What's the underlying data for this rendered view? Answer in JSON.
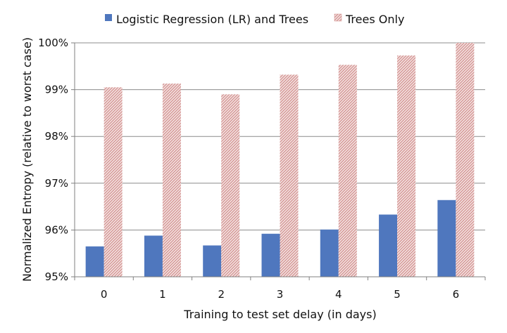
{
  "chart_data": {
    "type": "bar",
    "title": "",
    "xlabel": "Training to test set delay (in days)",
    "ylabel": "Normalized Entropy (relative to worst case)",
    "categories": [
      "0",
      "1",
      "2",
      "3",
      "4",
      "5",
      "6"
    ],
    "ylim": [
      95,
      100
    ],
    "yticks": [
      95,
      96,
      97,
      98,
      99,
      100
    ],
    "ytick_labels": [
      "95%",
      "96%",
      "97%",
      "98%",
      "99%",
      "100%"
    ],
    "grid": true,
    "legend_position": "top",
    "series": [
      {
        "name": "Logistic Regression (LR) and Trees",
        "color": "#4f77be",
        "pattern": "solid",
        "values": [
          95.65,
          95.88,
          95.67,
          95.92,
          96.01,
          96.33,
          96.64
        ]
      },
      {
        "name": "Trees Only",
        "color": "#d89a99",
        "pattern": "diagonal-hatch",
        "values": [
          99.05,
          99.13,
          98.9,
          99.32,
          99.53,
          99.73,
          100.0
        ]
      }
    ]
  }
}
